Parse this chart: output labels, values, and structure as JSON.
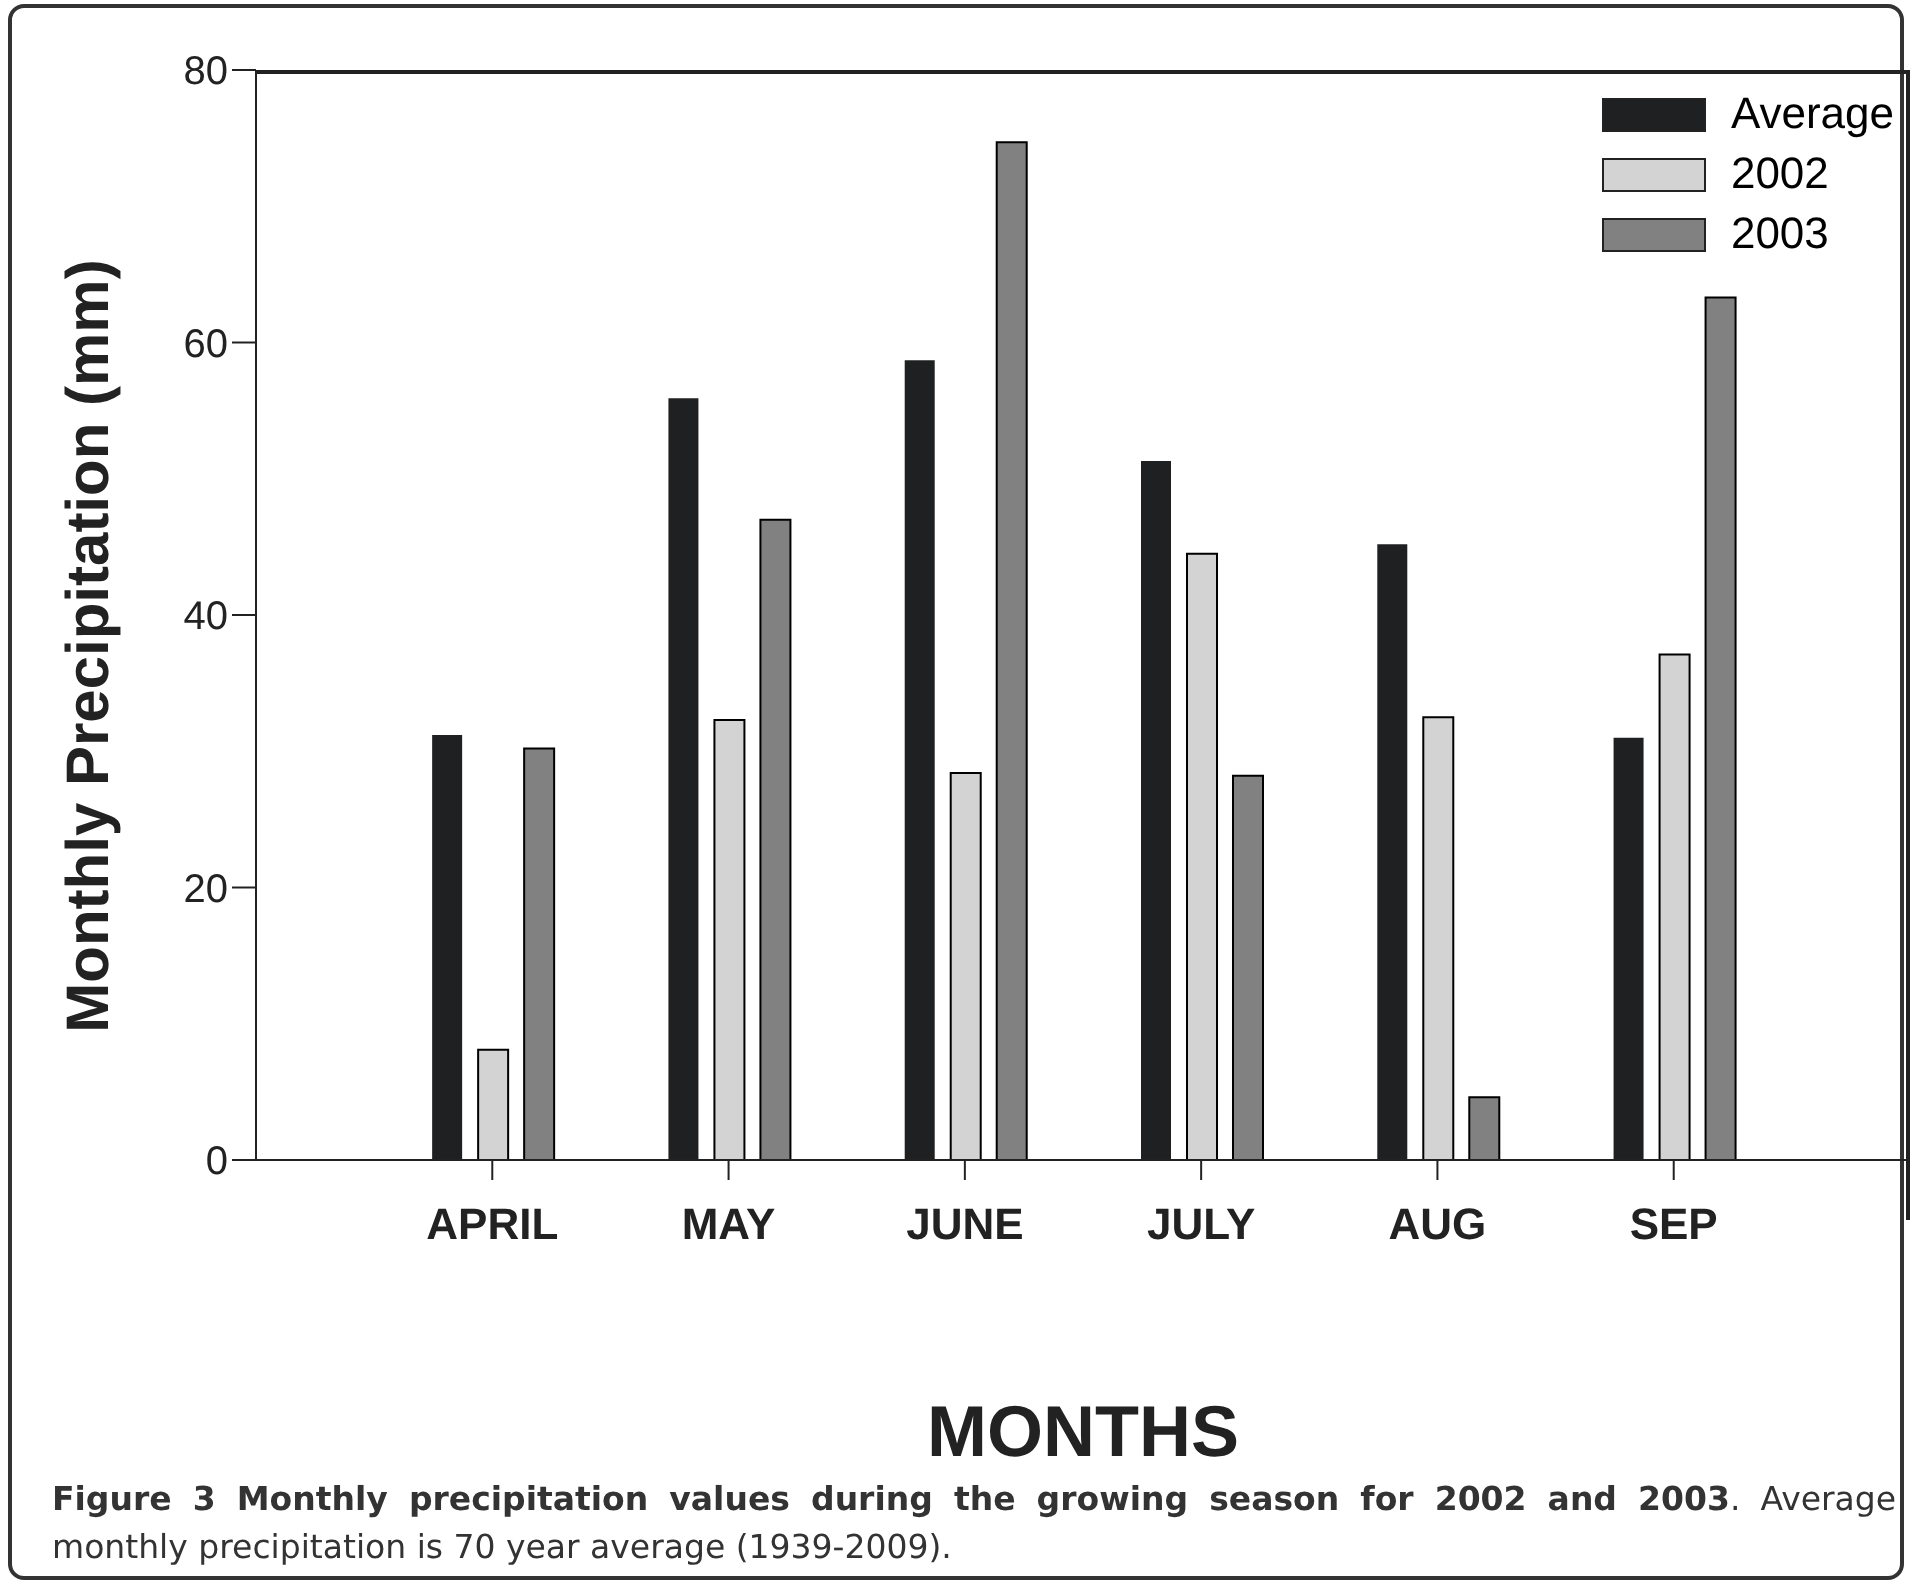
{
  "chart_data": {
    "type": "bar",
    "xlabel": "MONTHS",
    "ylabel": "Monthly Precipitation (mm)",
    "categories": [
      "APRIL",
      "MAY",
      "JUNE",
      "JULY",
      "AUG",
      "SEP"
    ],
    "series": [
      {
        "name": "Average",
        "color": "#1f2021",
        "values": [
          31.2,
          55.9,
          58.7,
          51.3,
          45.2,
          31.0
        ]
      },
      {
        "name": "2002",
        "color": "#d3d3d3",
        "values": [
          8.1,
          32.3,
          28.4,
          44.5,
          32.5,
          37.1
        ]
      },
      {
        "name": "2003",
        "color": "#808180",
        "values": [
          30.2,
          47.0,
          74.7,
          28.2,
          4.6,
          63.3
        ]
      }
    ],
    "ylim": [
      0,
      80
    ],
    "yticks": [
      0,
      20,
      40,
      60,
      80
    ],
    "grid": false,
    "legend": "top right",
    "annotations": [
      "Figure 3 Monthly precipitation values during the growing season for 2002 and 2003",
      ". Average monthly precipitation is 70 year average (1939-2009)."
    ]
  }
}
